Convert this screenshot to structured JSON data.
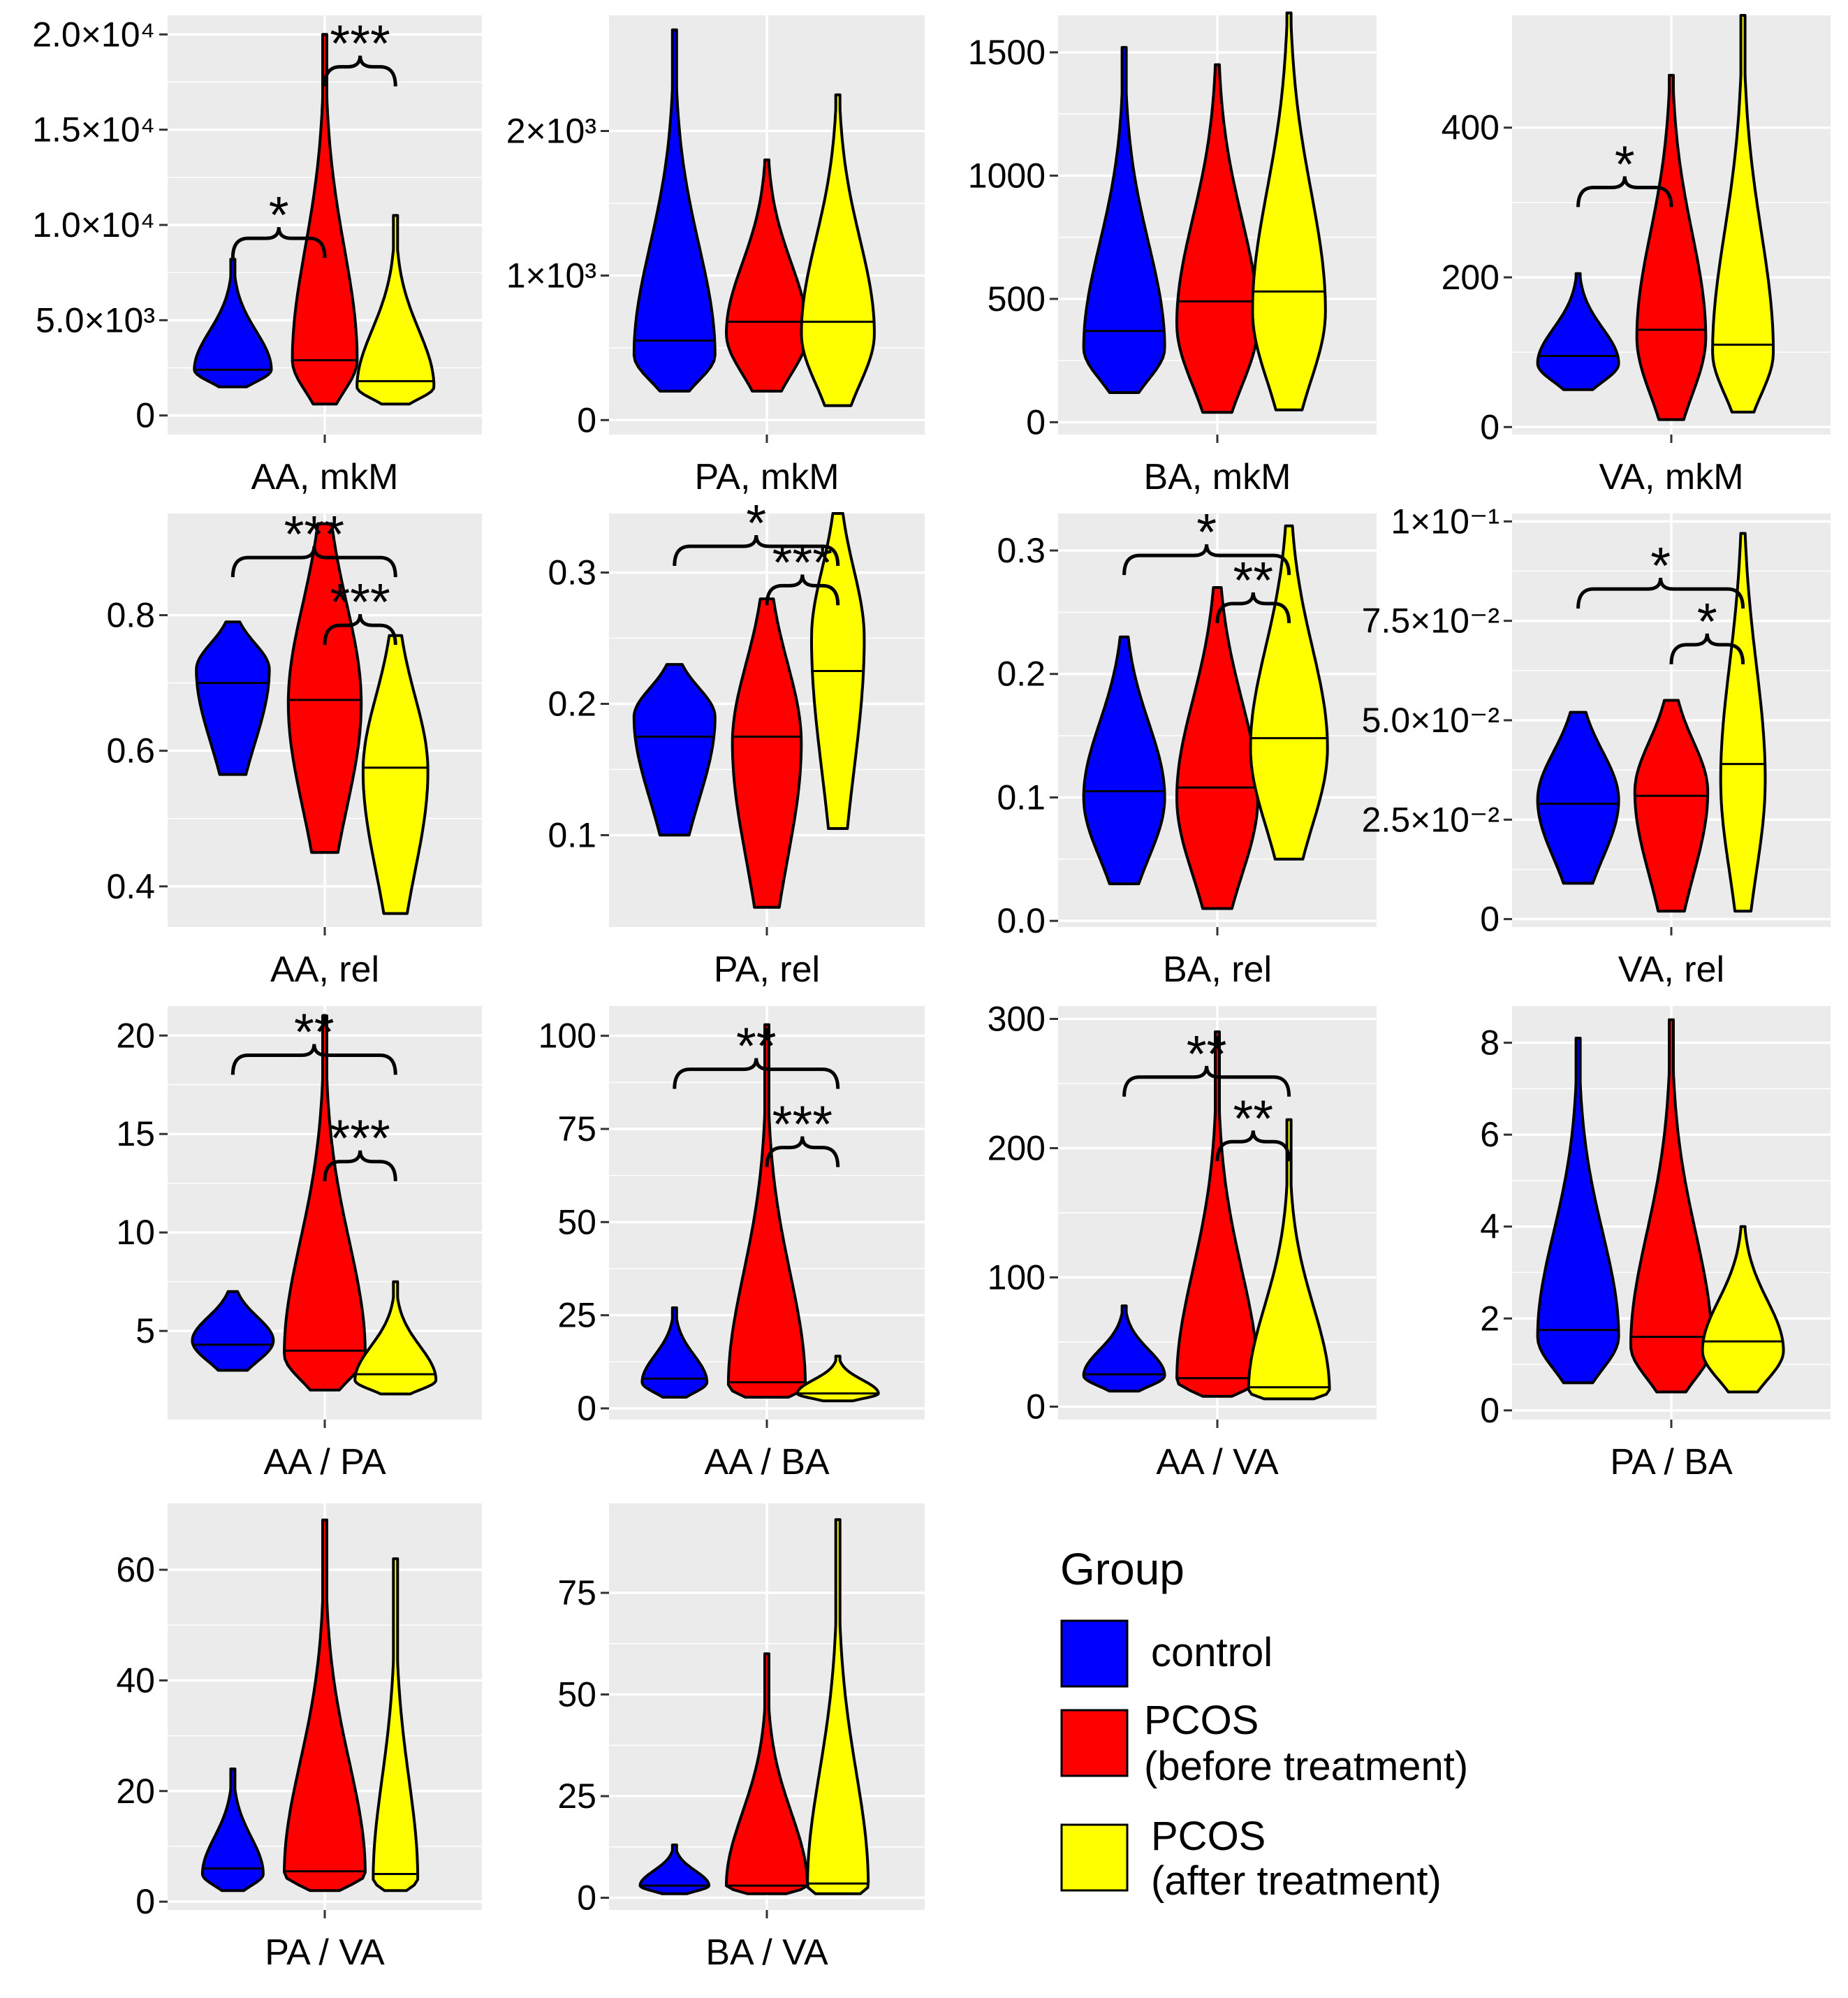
{
  "colors": {
    "panel_bg": "#ebebeb",
    "grid": "#ffffff",
    "outline": "#000000"
  },
  "legend": {
    "title": "Group",
    "items": [
      {
        "label_lines": [
          "control"
        ],
        "color": "#0000ff"
      },
      {
        "label_lines": [
          "PCOS",
          "(before treatment)"
        ],
        "color": "#ff0000"
      },
      {
        "label_lines": [
          "PCOS",
          "(after treatment)"
        ],
        "color": "#ffff00"
      }
    ]
  },
  "chart_data": [
    {
      "type": "violin",
      "xlabel": "AA, mkM",
      "ylim": [
        -1000,
        21000
      ],
      "ticks": [
        {
          "v": 0,
          "label": "0"
        },
        {
          "v": 5000,
          "label": "5.0×10³"
        },
        {
          "v": 10000,
          "label": "1.0×10⁴"
        },
        {
          "v": 15000,
          "label": "1.5×10⁴"
        },
        {
          "v": 20000,
          "label": "2.0×10⁴"
        }
      ],
      "groups": [
        {
          "name": "control",
          "min": 1500,
          "max": 8200,
          "median": 2400,
          "mode": 2400,
          "width": 0.95
        },
        {
          "name": "PCOS (before treatment)",
          "min": 600,
          "max": 20000,
          "median": 2900,
          "mode": 2900,
          "width": 0.8
        },
        {
          "name": "PCOS (after treatment)",
          "min": 600,
          "max": 10500,
          "median": 1800,
          "mode": 1500,
          "width": 0.95
        }
      ],
      "significance": [
        {
          "g1": 0,
          "g2": 1,
          "y": 9300,
          "label": "*"
        },
        {
          "g1": 1,
          "g2": 2,
          "y": 18300,
          "label": "***"
        }
      ]
    },
    {
      "type": "violin",
      "xlabel": "PA, mkM",
      "ylim": [
        -100,
        2800
      ],
      "ticks": [
        {
          "v": 0,
          "label": "0"
        },
        {
          "v": 1000,
          "label": "1×10³"
        },
        {
          "v": 2000,
          "label": "2×10³"
        }
      ],
      "groups": [
        {
          "name": "control",
          "min": 200,
          "max": 2700,
          "median": 550,
          "mode": 450,
          "width": 1.0
        },
        {
          "name": "PCOS (before treatment)",
          "min": 200,
          "max": 1800,
          "median": 680,
          "mode": 600,
          "width": 1.0
        },
        {
          "name": "PCOS (after treatment)",
          "min": 100,
          "max": 2250,
          "median": 680,
          "mode": 600,
          "width": 0.9
        }
      ],
      "significance": []
    },
    {
      "type": "violin",
      "xlabel": "BA, mkM",
      "ylim": [
        -50,
        1650
      ],
      "ticks": [
        {
          "v": 0,
          "label": "0"
        },
        {
          "v": 500,
          "label": "500"
        },
        {
          "v": 1000,
          "label": "1000"
        },
        {
          "v": 1500,
          "label": "1500"
        }
      ],
      "groups": [
        {
          "name": "control",
          "min": 120,
          "max": 1520,
          "median": 370,
          "mode": 300,
          "width": 1.0
        },
        {
          "name": "PCOS (before treatment)",
          "min": 40,
          "max": 1450,
          "median": 490,
          "mode": 400,
          "width": 1.0
        },
        {
          "name": "PCOS (after treatment)",
          "min": 50,
          "max": 1660,
          "median": 530,
          "mode": 450,
          "width": 0.9
        }
      ],
      "significance": []
    },
    {
      "type": "violin",
      "xlabel": "VA, mkM",
      "ylim": [
        -10,
        550
      ],
      "ticks": [
        {
          "v": 0,
          "label": "0"
        },
        {
          "v": 200,
          "label": "200"
        },
        {
          "v": 400,
          "label": "400"
        }
      ],
      "groups": [
        {
          "name": "control",
          "min": 50,
          "max": 205,
          "median": 95,
          "mode": 85,
          "width": 1.0
        },
        {
          "name": "PCOS (before treatment)",
          "min": 10,
          "max": 470,
          "median": 130,
          "mode": 120,
          "width": 0.85
        },
        {
          "name": "PCOS (after treatment)",
          "min": 20,
          "max": 550,
          "median": 110,
          "mode": 100,
          "width": 0.75
        }
      ],
      "significance": [
        {
          "g1": 0,
          "g2": 1,
          "y": 320,
          "label": "*"
        }
      ]
    },
    {
      "type": "violin",
      "xlabel": "AA, rel",
      "ylim": [
        0.34,
        0.95
      ],
      "ticks": [
        {
          "v": 0.4,
          "label": "0.4"
        },
        {
          "v": 0.6,
          "label": "0.6"
        },
        {
          "v": 0.8,
          "label": "0.8"
        }
      ],
      "groups": [
        {
          "name": "control",
          "min": 0.565,
          "max": 0.79,
          "median": 0.7,
          "mode": 0.72,
          "width": 0.9
        },
        {
          "name": "PCOS (before treatment)",
          "min": 0.45,
          "max": 0.935,
          "median": 0.675,
          "mode": 0.67,
          "width": 0.9
        },
        {
          "name": "PCOS (after treatment)",
          "min": 0.36,
          "max": 0.77,
          "median": 0.575,
          "mode": 0.57,
          "width": 0.8
        }
      ],
      "significance": [
        {
          "g1": 0,
          "g2": 2,
          "y": 0.885,
          "label": "***"
        },
        {
          "g1": 1,
          "g2": 2,
          "y": 0.785,
          "label": "***"
        }
      ]
    },
    {
      "type": "violin",
      "xlabel": "PA, rel",
      "ylim": [
        0.03,
        0.345
      ],
      "ticks": [
        {
          "v": 0.1,
          "label": "0.1"
        },
        {
          "v": 0.2,
          "label": "0.2"
        },
        {
          "v": 0.3,
          "label": "0.3"
        }
      ],
      "groups": [
        {
          "name": "control",
          "min": 0.1,
          "max": 0.23,
          "median": 0.175,
          "mode": 0.19,
          "width": 1.0
        },
        {
          "name": "PCOS (before treatment)",
          "min": 0.045,
          "max": 0.28,
          "median": 0.175,
          "mode": 0.17,
          "width": 0.85
        },
        {
          "name": "PCOS (after treatment)",
          "min": 0.105,
          "max": 0.345,
          "median": 0.225,
          "mode": 0.25,
          "width": 0.65
        }
      ],
      "significance": [
        {
          "g1": 0,
          "g2": 2,
          "y": 0.32,
          "label": "*"
        },
        {
          "g1": 1,
          "g2": 2,
          "y": 0.29,
          "label": "***"
        }
      ]
    },
    {
      "type": "violin",
      "xlabel": "BA, rel",
      "ylim": [
        -0.005,
        0.33
      ],
      "ticks": [
        {
          "v": 0.0,
          "label": "0.0"
        },
        {
          "v": 0.1,
          "label": "0.1"
        },
        {
          "v": 0.2,
          "label": "0.2"
        },
        {
          "v": 0.3,
          "label": "0.3"
        }
      ],
      "groups": [
        {
          "name": "control",
          "min": 0.03,
          "max": 0.23,
          "median": 0.105,
          "mode": 0.1,
          "width": 1.0
        },
        {
          "name": "PCOS (before treatment)",
          "min": 0.01,
          "max": 0.27,
          "median": 0.108,
          "mode": 0.1,
          "width": 1.0
        },
        {
          "name": "PCOS (after treatment)",
          "min": 0.05,
          "max": 0.32,
          "median": 0.148,
          "mode": 0.14,
          "width": 0.95
        }
      ],
      "significance": [
        {
          "g1": 0,
          "g2": 2,
          "y": 0.296,
          "label": "*"
        },
        {
          "g1": 1,
          "g2": 2,
          "y": 0.257,
          "label": "**"
        }
      ]
    },
    {
      "type": "violin",
      "xlabel": "VA, rel",
      "ylim": [
        -0.002,
        0.102
      ],
      "ticks": [
        {
          "v": 0,
          "label": "0"
        },
        {
          "v": 0.025,
          "label": "2.5×10⁻²"
        },
        {
          "v": 0.05,
          "label": "5.0×10⁻²"
        },
        {
          "v": 0.075,
          "label": "7.5×10⁻²"
        },
        {
          "v": 0.1,
          "label": "1×10⁻¹"
        }
      ],
      "groups": [
        {
          "name": "control",
          "min": 0.009,
          "max": 0.052,
          "median": 0.029,
          "mode": 0.03,
          "width": 1.0
        },
        {
          "name": "PCOS (before treatment)",
          "min": 0.002,
          "max": 0.055,
          "median": 0.031,
          "mode": 0.032,
          "width": 0.9
        },
        {
          "name": "PCOS (after treatment)",
          "min": 0.002,
          "max": 0.097,
          "median": 0.039,
          "mode": 0.035,
          "width": 0.55
        }
      ],
      "significance": [
        {
          "g1": 0,
          "g2": 2,
          "y": 0.083,
          "label": "*"
        },
        {
          "g1": 1,
          "g2": 2,
          "y": 0.069,
          "label": "*"
        }
      ]
    },
    {
      "type": "violin",
      "xlabel": "AA / PA",
      "ylim": [
        0.5,
        21.5
      ],
      "ticks": [
        {
          "v": 5,
          "label": "5"
        },
        {
          "v": 10,
          "label": "10"
        },
        {
          "v": 15,
          "label": "15"
        },
        {
          "v": 20,
          "label": "20"
        }
      ],
      "groups": [
        {
          "name": "control",
          "min": 3.0,
          "max": 7.0,
          "median": 4.3,
          "mode": 4.5,
          "width": 1.0
        },
        {
          "name": "PCOS (before treatment)",
          "min": 2.0,
          "max": 21.0,
          "median": 4.0,
          "mode": 3.8,
          "width": 1.0
        },
        {
          "name": "PCOS (after treatment)",
          "min": 1.8,
          "max": 7.5,
          "median": 2.8,
          "mode": 2.5,
          "width": 1.0
        }
      ],
      "significance": [
        {
          "g1": 0,
          "g2": 2,
          "y": 19.0,
          "label": "**"
        },
        {
          "g1": 1,
          "g2": 2,
          "y": 13.6,
          "label": "***"
        }
      ]
    },
    {
      "type": "violin",
      "xlabel": "AA / BA",
      "ylim": [
        -3,
        108
      ],
      "ticks": [
        {
          "v": 0,
          "label": "0"
        },
        {
          "v": 25,
          "label": "25"
        },
        {
          "v": 50,
          "label": "50"
        },
        {
          "v": 75,
          "label": "75"
        },
        {
          "v": 100,
          "label": "100"
        }
      ],
      "groups": [
        {
          "name": "control",
          "min": 3,
          "max": 27,
          "median": 8,
          "mode": 7,
          "width": 0.8
        },
        {
          "name": "PCOS (before treatment)",
          "min": 3,
          "max": 103,
          "median": 7,
          "mode": 6,
          "width": 0.95
        },
        {
          "name": "PCOS (after treatment)",
          "min": 2,
          "max": 14,
          "median": 4,
          "mode": 4,
          "width": 1.0
        }
      ],
      "significance": [
        {
          "g1": 0,
          "g2": 2,
          "y": 91,
          "label": "**"
        },
        {
          "g1": 1,
          "g2": 2,
          "y": 70,
          "label": "***"
        }
      ]
    },
    {
      "type": "violin",
      "xlabel": "AA / VA",
      "ylim": [
        -10,
        310
      ],
      "ticks": [
        {
          "v": 0,
          "label": "0"
        },
        {
          "v": 100,
          "label": "100"
        },
        {
          "v": 200,
          "label": "200"
        },
        {
          "v": 300,
          "label": "300"
        }
      ],
      "groups": [
        {
          "name": "control",
          "min": 12,
          "max": 78,
          "median": 25,
          "mode": 24,
          "width": 1.0
        },
        {
          "name": "PCOS (before treatment)",
          "min": 8,
          "max": 290,
          "median": 22,
          "mode": 20,
          "width": 1.0
        },
        {
          "name": "PCOS (after treatment)",
          "min": 6,
          "max": 222,
          "median": 15,
          "mode": 12,
          "width": 1.0
        }
      ],
      "significance": [
        {
          "g1": 0,
          "g2": 2,
          "y": 255,
          "label": "**"
        },
        {
          "g1": 1,
          "g2": 2,
          "y": 205,
          "label": "**"
        }
      ]
    },
    {
      "type": "violin",
      "xlabel": "PA / BA",
      "ylim": [
        -0.2,
        8.8
      ],
      "ticks": [
        {
          "v": 0,
          "label": "0"
        },
        {
          "v": 2,
          "label": "2"
        },
        {
          "v": 4,
          "label": "4"
        },
        {
          "v": 6,
          "label": "6"
        },
        {
          "v": 8,
          "label": "8"
        }
      ],
      "groups": [
        {
          "name": "control",
          "min": 0.6,
          "max": 8.1,
          "median": 1.75,
          "mode": 1.6,
          "width": 1.0
        },
        {
          "name": "PCOS (before treatment)",
          "min": 0.4,
          "max": 8.5,
          "median": 1.6,
          "mode": 1.4,
          "width": 1.0
        },
        {
          "name": "PCOS (after treatment)",
          "min": 0.4,
          "max": 4.0,
          "median": 1.5,
          "mode": 1.3,
          "width": 1.0
        }
      ],
      "significance": []
    },
    {
      "type": "violin",
      "xlabel": "PA / VA",
      "ylim": [
        -1.5,
        72
      ],
      "ticks": [
        {
          "v": 0,
          "label": "0"
        },
        {
          "v": 20,
          "label": "20"
        },
        {
          "v": 40,
          "label": "40"
        },
        {
          "v": 60,
          "label": "60"
        }
      ],
      "groups": [
        {
          "name": "control",
          "min": 2,
          "max": 24,
          "median": 6,
          "mode": 5,
          "width": 0.75
        },
        {
          "name": "PCOS (before treatment)",
          "min": 2,
          "max": 69,
          "median": 5.5,
          "mode": 5,
          "width": 1.0
        },
        {
          "name": "PCOS (after treatment)",
          "min": 2,
          "max": 62,
          "median": 5,
          "mode": 4,
          "width": 0.55
        }
      ],
      "significance": []
    },
    {
      "type": "violin",
      "xlabel": "BA / VA",
      "ylim": [
        -3,
        97
      ],
      "ticks": [
        {
          "v": 0,
          "label": "0"
        },
        {
          "v": 25,
          "label": "25"
        },
        {
          "v": 50,
          "label": "50"
        },
        {
          "v": 75,
          "label": "75"
        }
      ],
      "groups": [
        {
          "name": "control",
          "min": 1,
          "max": 13,
          "median": 3,
          "mode": 3,
          "width": 0.85
        },
        {
          "name": "PCOS (before treatment)",
          "min": 1,
          "max": 60,
          "median": 3,
          "mode": 3,
          "width": 1.0
        },
        {
          "name": "PCOS (after treatment)",
          "min": 1,
          "max": 93,
          "median": 3.5,
          "mode": 3,
          "width": 0.75
        }
      ],
      "significance": []
    }
  ]
}
